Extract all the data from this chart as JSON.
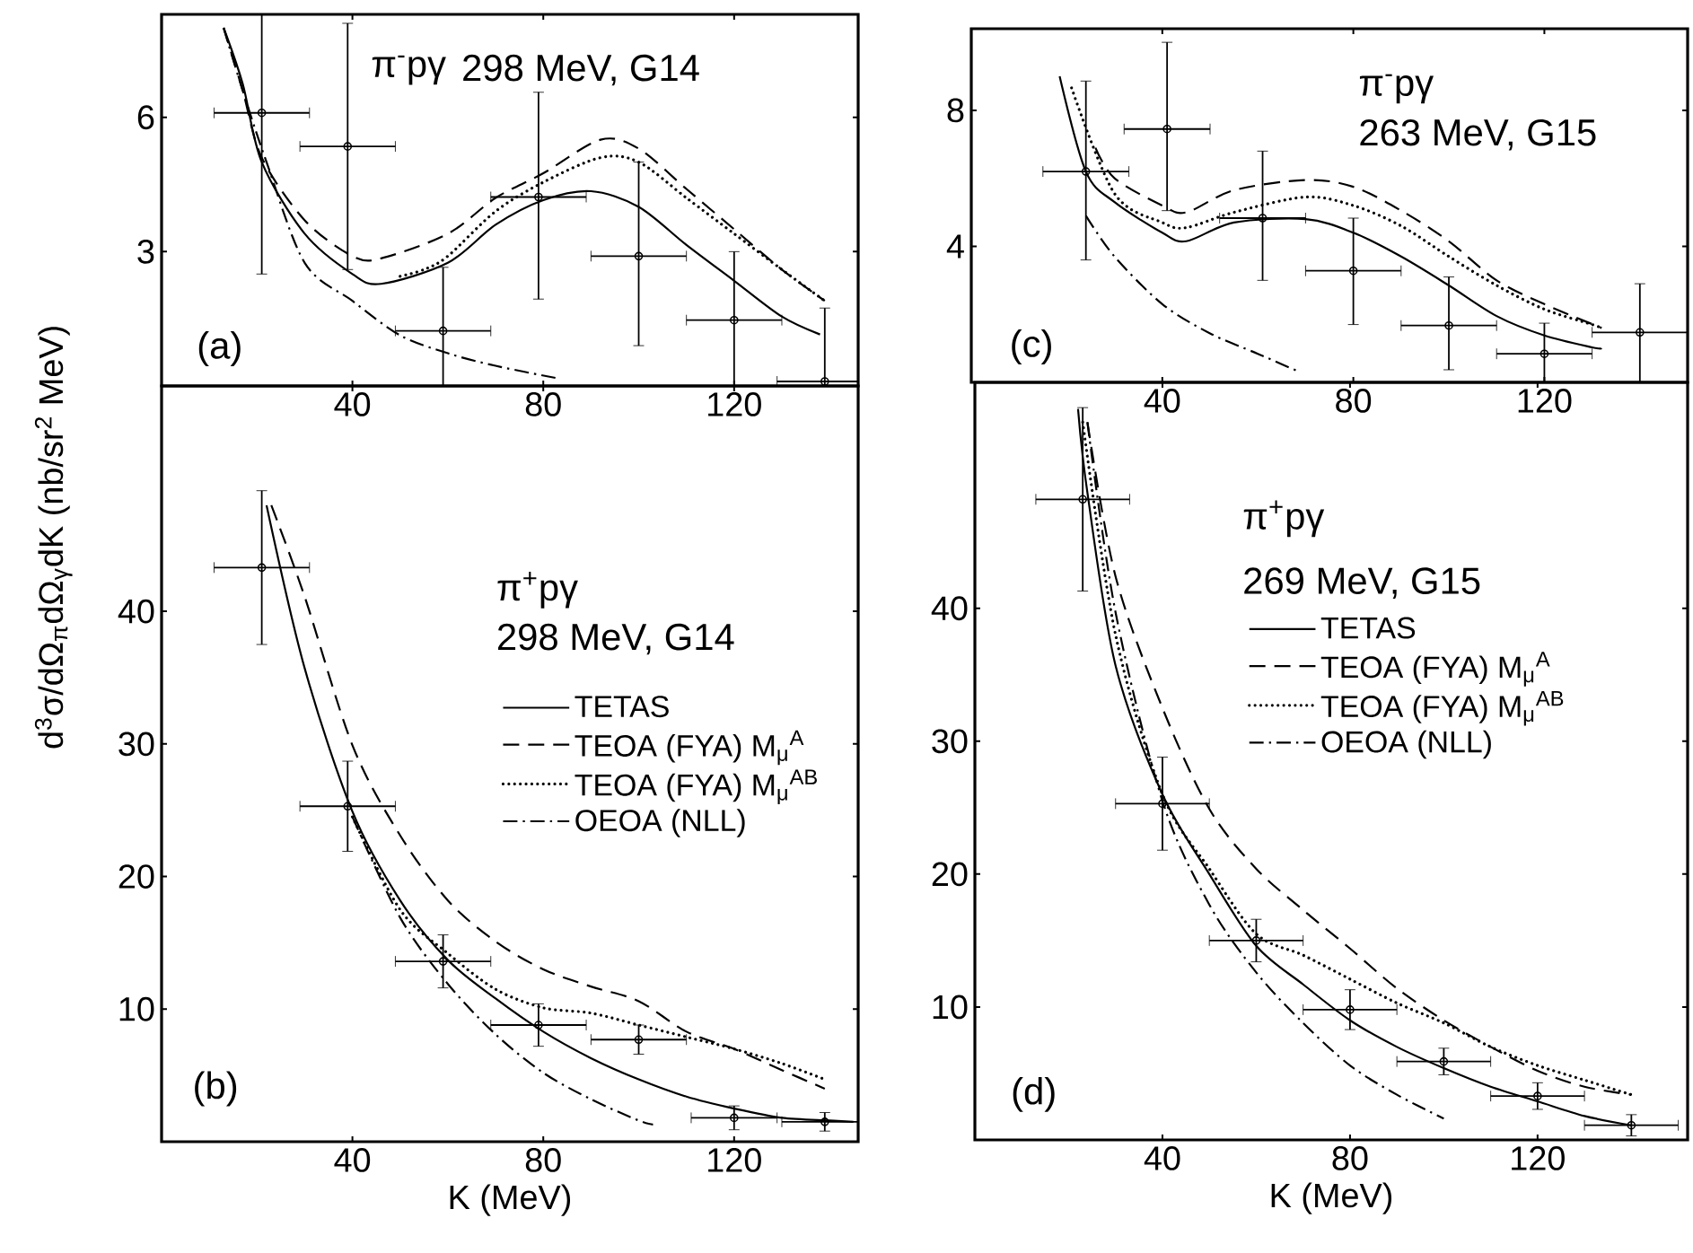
{
  "chart_data": [
    {
      "type": "line",
      "xlim": [
        0,
        146
      ],
      "xticks": [
        40,
        80,
        120
      ],
      "ylim": [
        0,
        8.3
      ],
      "yticks": [
        3,
        6
      ],
      "annotations": [
        "(a)",
        "π$^{-}$pγ",
        "298 MeV, G14"
      ],
      "series": [
        {
          "type": "scatter",
          "color": "#000000",
          "marker": "circle",
          "x": [
            21,
            39,
            59,
            79,
            100,
            120,
            139
          ],
          "values": [
            6.1,
            5.35,
            1.23,
            4.22,
            2.9,
            1.47,
            0.1
          ],
          "errors": [
            [
              2.5,
              8.3
            ],
            [
              2.6,
              8.1
            ],
            [
              0,
              2.65
            ],
            [
              1.94,
              6.56
            ],
            [
              0.9,
              5.0
            ],
            [
              0,
              3.0
            ],
            [
              0,
              1.74
            ]
          ],
          "xerrors": [
            10,
            10,
            10,
            10,
            10,
            10,
            10
          ]
        },
        {
          "color": "#000000",
          "line_style": "solid",
          "x": [
            13,
            17,
            21,
            30,
            40,
            46,
            60,
            70,
            80,
            90,
            100,
            110,
            120,
            130,
            138
          ],
          "values": [
            8.0,
            6.75,
            5.0,
            3.4,
            2.5,
            2.28,
            2.75,
            3.6,
            4.15,
            4.35,
            4.0,
            3.15,
            2.35,
            1.55,
            1.15
          ]
        },
        {
          "color": "#000000",
          "line_style": "dashed",
          "x": [
            13,
            17,
            21,
            30,
            40,
            46,
            60,
            70,
            80,
            92,
            100,
            110,
            120,
            130,
            139
          ],
          "values": [
            8.0,
            6.6,
            5.1,
            3.7,
            2.9,
            2.85,
            3.4,
            4.2,
            4.75,
            5.5,
            5.3,
            4.4,
            3.5,
            2.6,
            1.9
          ]
        },
        {
          "color": "#000000",
          "line_style": "dotted",
          "x": [
            50,
            55,
            60,
            70,
            80,
            92,
            100,
            110,
            120,
            130,
            139
          ],
          "values": [
            2.45,
            2.6,
            2.9,
            3.9,
            4.55,
            5.1,
            5.0,
            4.2,
            3.4,
            2.6,
            1.9
          ]
        },
        {
          "color": "#000000",
          "line_style": "dashdot",
          "x": [
            13,
            17,
            22,
            30,
            40,
            50,
            60,
            70,
            83
          ],
          "values": [
            8.0,
            6.6,
            5.0,
            2.75,
            1.9,
            1.13,
            0.73,
            0.45,
            0.17
          ]
        }
      ]
    },
    {
      "type": "line",
      "xlim": [
        0,
        150
      ],
      "xticks": [
        40,
        80,
        120
      ],
      "ylim": [
        0,
        10.4
      ],
      "yticks": [
        4,
        8
      ],
      "annotations": [
        "(c)",
        "π$^{-}$pγ",
        "263 MeV, G15"
      ],
      "series": [
        {
          "type": "scatter",
          "color": "#000000",
          "marker": "circle",
          "x": [
            24,
            41,
            61,
            80,
            100,
            120,
            140
          ],
          "values": [
            6.2,
            7.45,
            4.83,
            3.28,
            1.67,
            0.84,
            1.47
          ],
          "errors": [
            [
              3.6,
              8.86
            ],
            [
              5.05,
              10.0
            ],
            [
              3.0,
              6.8
            ],
            [
              1.7,
              4.83
            ],
            [
              0.37,
              3.1
            ],
            [
              0,
              1.74
            ],
            [
              0,
              2.9
            ]
          ],
          "xerrors": [
            9,
            9,
            9,
            10,
            10,
            10,
            10
          ]
        },
        {
          "color": "#000000",
          "line_style": "solid",
          "x": [
            18.5,
            24,
            30,
            40,
            45,
            55,
            70,
            80,
            90,
            100,
            110,
            120,
            130,
            132
          ],
          "values": [
            9.0,
            6.2,
            5.3,
            4.4,
            4.15,
            4.7,
            4.8,
            4.4,
            3.7,
            2.85,
            1.95,
            1.38,
            1.03,
            1.0
          ]
        },
        {
          "color": "#000000",
          "line_style": "dashed",
          "x": [
            26,
            30,
            40,
            45,
            55,
            70,
            80,
            90,
            100,
            110,
            120,
            132
          ],
          "values": [
            6.9,
            6.0,
            5.2,
            5.0,
            5.65,
            5.95,
            5.75,
            5.05,
            4.15,
            3.0,
            2.3,
            1.6
          ]
        },
        {
          "color": "#000000",
          "line_style": "dotted",
          "x": [
            21,
            30,
            40,
            45,
            55,
            70,
            80,
            90,
            100,
            110,
            120,
            130,
            132
          ],
          "values": [
            8.66,
            5.55,
            4.7,
            4.55,
            5.0,
            5.45,
            5.2,
            4.6,
            3.7,
            2.85,
            2.15,
            1.7,
            1.6
          ]
        },
        {
          "color": "#000000",
          "line_style": "dashdot",
          "x": [
            24,
            30,
            40,
            50,
            60,
            68
          ],
          "values": [
            4.9,
            3.7,
            2.3,
            1.44,
            0.84,
            0.35
          ]
        }
      ]
    },
    {
      "type": "line",
      "xlim": [
        0,
        146
      ],
      "xticks": [
        40,
        80,
        120
      ],
      "ylim": [
        0,
        57
      ],
      "yticks": [
        10,
        20,
        30,
        40
      ],
      "xlabel": "K (MeV)",
      "ylabel": "d$^{3}$σ/dΩ$_{π}$dΩ$_{γ}$dK (nb/sr$^{2}$ MeV)",
      "legend": "right",
      "annotations": [
        "(b)",
        "π$^{+}$pγ",
        "298 MeV, G14"
      ],
      "series": [
        {
          "type": "scatter",
          "color": "#000000",
          "marker": "circle",
          "x": [
            21,
            39,
            59,
            79,
            100,
            120,
            139
          ],
          "values": [
            43.3,
            25.3,
            13.6,
            8.8,
            7.7,
            1.8,
            1.5
          ],
          "errors": [
            5.8,
            3.4,
            2,
            1.6,
            1.1,
            0.9,
            0.7
          ],
          "xerrors": [
            10,
            10,
            10,
            10,
            10,
            9,
            9
          ]
        },
        {
          "name": "TETAS",
          "color": "#000000",
          "line_style": "solid",
          "x": [
            22,
            30,
            40,
            50,
            60,
            70,
            80,
            90,
            100,
            110,
            120,
            130,
            140,
            145
          ],
          "values": [
            48,
            35.7,
            24.9,
            18.2,
            13.7,
            10.8,
            8.3,
            6.3,
            4.7,
            3.4,
            2.5,
            1.8,
            1.6,
            1.5
          ]
        },
        {
          "name": "TEOA (FYA) M$_{μ}$$^{A}$",
          "color": "#000000",
          "line_style": "dashed",
          "x": [
            23,
            30,
            40,
            50,
            60,
            70,
            80,
            90,
            100,
            110,
            120,
            130,
            139
          ],
          "values": [
            48,
            41.1,
            29.9,
            23.1,
            18.2,
            15.1,
            13.0,
            11.7,
            10.6,
            8.3,
            7.0,
            5.4,
            4.0
          ]
        },
        {
          "name": "TEOA (FYA) M$_{μ}$$^{AB}$",
          "color": "#000000",
          "line_style": "dotted",
          "x": [
            40,
            50,
            60,
            70,
            80,
            90,
            100,
            110,
            120,
            130,
            139
          ],
          "values": [
            24.5,
            17.5,
            14.2,
            11.5,
            10.1,
            9.7,
            8.8,
            7.9,
            7.0,
            5.9,
            4.7
          ]
        },
        {
          "name": "OEOA (NLL)",
          "color": "#000000",
          "line_style": "dashdot",
          "x": [
            40,
            50,
            60,
            70,
            80,
            90,
            100,
            103
          ],
          "values": [
            24.5,
            16.9,
            11.9,
            8.1,
            5.2,
            3.2,
            1.6,
            1.3
          ]
        }
      ]
    },
    {
      "type": "line",
      "xlim": [
        0,
        152
      ],
      "xticks": [
        40,
        80,
        120
      ],
      "ylim": [
        0,
        57
      ],
      "yticks": [
        10,
        20,
        30,
        40
      ],
      "xlabel": "K (MeV)",
      "legend": "right",
      "annotations": [
        "(d)",
        "π$^{+}$pγ",
        "269 MeV, G15"
      ],
      "series": [
        {
          "type": "scatter",
          "color": "#000000",
          "marker": "circle",
          "x": [
            23,
            40,
            60,
            80,
            100,
            120,
            140
          ],
          "values": [
            48.2,
            25.3,
            15.0,
            9.8,
            5.9,
            3.3,
            1.1
          ],
          "errors": [
            6.9,
            3.5,
            1.6,
            1.5,
            1.0,
            1.0,
            0.8
          ],
          "xerrors": [
            10,
            10,
            10,
            10,
            10,
            10,
            10
          ]
        },
        {
          "name": "TETAS",
          "color": "#000000",
          "line_style": "solid",
          "x": [
            22,
            24,
            30,
            40,
            50,
            60,
            70,
            80,
            90,
            100,
            110,
            120,
            130,
            140
          ],
          "values": [
            55,
            48.7,
            35.7,
            26.0,
            20.0,
            14.6,
            11.7,
            9.0,
            7.0,
            5.4,
            4.0,
            2.9,
            1.8,
            1.1
          ]
        },
        {
          "name": "TEOA (FYA) M$_{μ}$$^{A}$",
          "color": "#000000",
          "line_style": "dashed",
          "x": [
            24,
            30,
            40,
            50,
            60,
            70,
            80,
            90,
            100,
            110,
            120,
            130,
            140
          ],
          "values": [
            54,
            42.4,
            32.5,
            24.9,
            20.4,
            17.3,
            14.4,
            11.4,
            9.0,
            7.0,
            5.2,
            4.0,
            3.4
          ]
        },
        {
          "name": "TEOA (FYA) M$_{μ}$$^{AB}$",
          "color": "#000000",
          "line_style": "dotted",
          "x": [
            23,
            30,
            40,
            50,
            60,
            70,
            80,
            90,
            100,
            110,
            120,
            130,
            140
          ],
          "values": [
            54,
            38,
            26,
            20.4,
            15.5,
            13.9,
            12.1,
            10.3,
            8.8,
            7.0,
            5.6,
            4.5,
            3.4
          ]
        },
        {
          "name": "OEOA (NLL)",
          "color": "#000000",
          "line_style": "dashdot",
          "x": [
            24,
            30,
            40,
            50,
            60,
            70,
            80,
            90,
            100
          ],
          "values": [
            54,
            39.7,
            25.5,
            17.7,
            12.6,
            8.8,
            5.6,
            3.4,
            1.6
          ]
        }
      ]
    }
  ]
}
